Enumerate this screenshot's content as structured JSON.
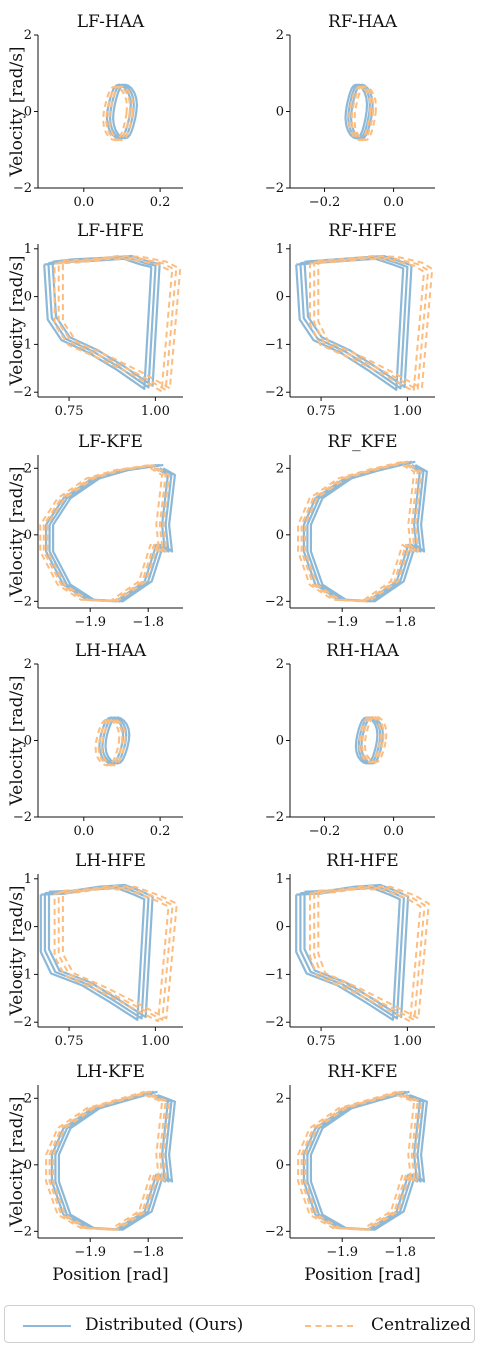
{
  "colors": {
    "distributed": "#8db9d8",
    "centralized": "#fcbd80",
    "axis": "#111111"
  },
  "shared": {
    "ylabel": "Velocity [rad/s]",
    "xlabel": "Position [rad]"
  },
  "legend": {
    "position": "bottom-center",
    "items": [
      {
        "label": "Distributed (Ours)",
        "style": "solid",
        "color": "#8db9d8"
      },
      {
        "label": "Centralized",
        "style": "dashed",
        "color": "#fcbd80"
      }
    ]
  },
  "chart_data": [
    {
      "type": "line",
      "title": "LF-HAA",
      "xlim": [
        -0.12,
        0.26
      ],
      "ylim": [
        -2,
        2
      ],
      "xticks": [
        0.0,
        0.2
      ],
      "xtick_labels": [
        "0.0",
        "0.2"
      ],
      "yticks": [
        -2,
        0,
        2
      ],
      "ytick_labels": [
        "−2",
        "0",
        "2"
      ],
      "shape": "loop",
      "loop": {
        "cx": 0.1,
        "cy": 0.0,
        "rx": 0.03,
        "ry": 0.7
      },
      "series": [
        {
          "name": "Distributed (Ours)",
          "dx": 0.0,
          "dy": 0.0
        },
        {
          "name": "Centralized",
          "dx": -0.01,
          "dy": -0.05
        }
      ]
    },
    {
      "type": "line",
      "title": "RF-HAA",
      "xlim": [
        -0.3,
        0.12
      ],
      "ylim": [
        -2,
        2
      ],
      "xticks": [
        -0.2,
        0.0
      ],
      "xtick_labels": [
        "−0.2",
        "0.0"
      ],
      "yticks": [
        -2,
        0,
        2
      ],
      "ytick_labels": [
        "−2",
        "0",
        "2"
      ],
      "shape": "loop",
      "loop": {
        "cx": -0.1,
        "cy": 0.0,
        "rx": 0.03,
        "ry": 0.7
      },
      "series": [
        {
          "name": "Distributed (Ours)",
          "dx": 0.0,
          "dy": 0.0
        },
        {
          "name": "Centralized",
          "dx": 0.01,
          "dy": -0.05
        }
      ]
    },
    {
      "type": "line",
      "title": "LF-HFE",
      "xlim": [
        0.66,
        1.08
      ],
      "ylim": [
        -2.1,
        1.1
      ],
      "xticks": [
        0.75,
        1.0
      ],
      "xtick_labels": [
        "0.75",
        "1.00"
      ],
      "yticks": [
        -2,
        -1,
        0,
        1
      ],
      "ytick_labels": [
        "−2",
        "−1",
        "0",
        "1"
      ],
      "shape": "quad",
      "series": [
        {
          "name": "Distributed (Ours)",
          "points": [
            [
              0.69,
              0.7
            ],
            [
              0.75,
              0.75
            ],
            [
              0.84,
              0.78
            ],
            [
              0.92,
              0.82
            ],
            [
              0.97,
              0.7
            ],
            [
              1.0,
              0.65
            ],
            [
              1.0,
              0.6
            ],
            [
              0.98,
              -1.9
            ],
            [
              0.9,
              -1.5
            ],
            [
              0.82,
              -1.15
            ],
            [
              0.74,
              -0.88
            ],
            [
              0.7,
              -0.45
            ],
            [
              0.69,
              0.7
            ]
          ]
        },
        {
          "name": "Centralized",
          "points": [
            [
              0.72,
              0.72
            ],
            [
              0.8,
              0.75
            ],
            [
              0.88,
              0.82
            ],
            [
              0.95,
              0.8
            ],
            [
              1.02,
              0.7
            ],
            [
              1.06,
              0.55
            ],
            [
              1.03,
              -1.95
            ],
            [
              0.95,
              -1.62
            ],
            [
              0.86,
              -1.3
            ],
            [
              0.76,
              -0.98
            ],
            [
              0.72,
              -0.55
            ],
            [
              0.72,
              0.72
            ]
          ]
        }
      ]
    },
    {
      "type": "line",
      "title": "RF-HFE",
      "xlim": [
        0.66,
        1.08
      ],
      "ylim": [
        -2.1,
        1.1
      ],
      "xticks": [
        0.75,
        1.0
      ],
      "xtick_labels": [
        "0.75",
        "1.00"
      ],
      "yticks": [
        -2,
        -1,
        0,
        1
      ],
      "ytick_labels": [
        "−2",
        "−1",
        "0",
        "1"
      ],
      "shape": "quad",
      "series": [
        {
          "name": "Distributed (Ours)",
          "points": [
            [
              0.69,
              0.7
            ],
            [
              0.76,
              0.74
            ],
            [
              0.84,
              0.78
            ],
            [
              0.92,
              0.82
            ],
            [
              0.97,
              0.7
            ],
            [
              1.0,
              0.62
            ],
            [
              0.98,
              -1.92
            ],
            [
              0.9,
              -1.52
            ],
            [
              0.82,
              -1.15
            ],
            [
              0.74,
              -0.88
            ],
            [
              0.7,
              -0.45
            ],
            [
              0.69,
              0.7
            ]
          ]
        },
        {
          "name": "Centralized",
          "points": [
            [
              0.73,
              0.72
            ],
            [
              0.81,
              0.76
            ],
            [
              0.89,
              0.82
            ],
            [
              0.96,
              0.8
            ],
            [
              1.03,
              0.68
            ],
            [
              1.06,
              0.55
            ],
            [
              1.03,
              -1.95
            ],
            [
              0.95,
              -1.63
            ],
            [
              0.86,
              -1.3
            ],
            [
              0.76,
              -0.98
            ],
            [
              0.73,
              -0.55
            ],
            [
              0.73,
              0.72
            ]
          ]
        }
      ]
    },
    {
      "type": "line",
      "title": "LF-KFE",
      "xlim": [
        -1.99,
        -1.74
      ],
      "ylim": [
        -2.2,
        2.4
      ],
      "xticks": [
        -1.9,
        -1.8
      ],
      "xtick_labels": [
        "−1.9",
        "−1.8"
      ],
      "yticks": [
        -2,
        0,
        2
      ],
      "ytick_labels": [
        "−2",
        "0",
        "2"
      ],
      "shape": "knee",
      "knee": {
        "left": -1.97,
        "right": -1.77,
        "top": 2.1,
        "bottom": -2.0,
        "stem": -1.78
      },
      "series": [
        {
          "name": "Distributed (Ours)",
          "dx": 0.0
        },
        {
          "name": "Centralized",
          "dx": -0.01
        }
      ]
    },
    {
      "type": "line",
      "title": "RF_KFE",
      "xlim": [
        -1.99,
        -1.74
      ],
      "ylim": [
        -2.2,
        2.4
      ],
      "xticks": [
        -1.9,
        -1.8
      ],
      "xtick_labels": [
        "−1.9",
        "−1.8"
      ],
      "yticks": [
        -2,
        0,
        2
      ],
      "ytick_labels": [
        "−2",
        "0",
        "2"
      ],
      "shape": "knee",
      "knee": {
        "left": -1.96,
        "right": -1.77,
        "top": 2.2,
        "bottom": -2.0,
        "stem": -1.78
      },
      "series": [
        {
          "name": "Distributed (Ours)",
          "dx": 0.0
        },
        {
          "name": "Centralized",
          "dx": -0.01
        }
      ]
    },
    {
      "type": "line",
      "title": "LH-HAA",
      "xlim": [
        -0.12,
        0.26
      ],
      "ylim": [
        -2,
        2
      ],
      "xticks": [
        0.0,
        0.2
      ],
      "xtick_labels": [
        "0.0",
        "0.2"
      ],
      "yticks": [
        -2,
        0,
        2
      ],
      "ytick_labels": [
        "−2",
        "0",
        "2"
      ],
      "shape": "loop",
      "loop": {
        "cx": 0.08,
        "cy": 0.0,
        "rx": 0.03,
        "ry": 0.6
      },
      "series": [
        {
          "name": "Distributed (Ours)",
          "dx": 0.0,
          "dy": 0.0
        },
        {
          "name": "Centralized",
          "dx": -0.01,
          "dy": -0.05
        }
      ]
    },
    {
      "type": "line",
      "title": "RH-HAA",
      "xlim": [
        -0.3,
        0.12
      ],
      "ylim": [
        -2,
        2
      ],
      "xticks": [
        -0.2,
        0.0
      ],
      "xtick_labels": [
        "−0.2",
        "0.0"
      ],
      "yticks": [
        -2,
        0,
        2
      ],
      "ytick_labels": [
        "−2",
        "0",
        "2"
      ],
      "shape": "loop",
      "loop": {
        "cx": -0.07,
        "cy": 0.0,
        "rx": 0.03,
        "ry": 0.6
      },
      "series": [
        {
          "name": "Distributed (Ours)",
          "dx": 0.0,
          "dy": 0.0
        },
        {
          "name": "Centralized",
          "dx": 0.01,
          "dy": 0.03
        }
      ]
    },
    {
      "type": "line",
      "title": "LH-HFE",
      "xlim": [
        0.66,
        1.08
      ],
      "ylim": [
        -2.1,
        1.1
      ],
      "xticks": [
        0.75,
        1.0
      ],
      "xtick_labels": [
        "0.75",
        "1.00"
      ],
      "yticks": [
        -2,
        -1,
        0,
        1
      ],
      "ytick_labels": [
        "−2",
        "−1",
        "0",
        "1"
      ],
      "shape": "quad",
      "series": [
        {
          "name": "Distributed (Ours)",
          "points": [
            [
              0.68,
              0.7
            ],
            [
              0.75,
              0.72
            ],
            [
              0.82,
              0.8
            ],
            [
              0.9,
              0.84
            ],
            [
              0.95,
              0.7
            ],
            [
              0.98,
              0.6
            ],
            [
              0.96,
              -1.92
            ],
            [
              0.88,
              -1.55
            ],
            [
              0.8,
              -1.2
            ],
            [
              0.71,
              -0.95
            ],
            [
              0.68,
              -0.5
            ],
            [
              0.68,
              0.7
            ]
          ]
        },
        {
          "name": "Centralized",
          "points": [
            [
              0.72,
              0.72
            ],
            [
              0.79,
              0.75
            ],
            [
              0.86,
              0.82
            ],
            [
              0.93,
              0.8
            ],
            [
              1.0,
              0.62
            ],
            [
              1.05,
              0.45
            ],
            [
              1.02,
              -1.95
            ],
            [
              0.94,
              -1.65
            ],
            [
              0.85,
              -1.32
            ],
            [
              0.75,
              -1.0
            ],
            [
              0.72,
              -0.6
            ],
            [
              0.72,
              0.72
            ]
          ]
        }
      ]
    },
    {
      "type": "line",
      "title": "RH-HFE",
      "xlim": [
        0.66,
        1.08
      ],
      "ylim": [
        -2.1,
        1.1
      ],
      "xticks": [
        0.75,
        1.0
      ],
      "xtick_labels": [
        "0.75",
        "1.00"
      ],
      "yticks": [
        -2,
        -1,
        0,
        1
      ],
      "ytick_labels": [
        "−2",
        "−1",
        "0",
        "1"
      ],
      "shape": "quad",
      "series": [
        {
          "name": "Distributed (Ours)",
          "points": [
            [
              0.69,
              0.7
            ],
            [
              0.76,
              0.72
            ],
            [
              0.83,
              0.8
            ],
            [
              0.91,
              0.84
            ],
            [
              0.96,
              0.7
            ],
            [
              0.99,
              0.6
            ],
            [
              0.97,
              -1.92
            ],
            [
              0.89,
              -1.55
            ],
            [
              0.81,
              -1.2
            ],
            [
              0.72,
              -0.95
            ],
            [
              0.69,
              -0.5
            ],
            [
              0.69,
              0.7
            ]
          ]
        },
        {
          "name": "Centralized",
          "points": [
            [
              0.73,
              0.72
            ],
            [
              0.8,
              0.75
            ],
            [
              0.87,
              0.82
            ],
            [
              0.94,
              0.8
            ],
            [
              1.01,
              0.62
            ],
            [
              1.05,
              0.45
            ],
            [
              1.02,
              -1.95
            ],
            [
              0.94,
              -1.65
            ],
            [
              0.85,
              -1.32
            ],
            [
              0.75,
              -1.0
            ],
            [
              0.73,
              -0.6
            ],
            [
              0.73,
              0.72
            ]
          ]
        }
      ]
    },
    {
      "type": "line",
      "title": "LH-KFE",
      "xlim": [
        -1.99,
        -1.74
      ],
      "ylim": [
        -2.2,
        2.4
      ],
      "xticks": [
        -1.9,
        -1.8
      ],
      "xtick_labels": [
        "−1.9",
        "−1.8"
      ],
      "yticks": [
        -2,
        0,
        2
      ],
      "ytick_labels": [
        "−2",
        "0",
        "2"
      ],
      "shape": "knee",
      "knee": {
        "left": -1.96,
        "right": -1.77,
        "top": 2.2,
        "bottom": -1.95,
        "stem": -1.79
      },
      "series": [
        {
          "name": "Distributed (Ours)",
          "dx": 0.0
        },
        {
          "name": "Centralized",
          "dx": -0.01
        }
      ]
    },
    {
      "type": "line",
      "title": "RH-KFE",
      "xlim": [
        -1.99,
        -1.74
      ],
      "ylim": [
        -2.2,
        2.4
      ],
      "xticks": [
        -1.9,
        -1.8
      ],
      "xtick_labels": [
        "−1.9",
        "−1.8"
      ],
      "yticks": [
        -2,
        0,
        2
      ],
      "ytick_labels": [
        "−2",
        "0",
        "2"
      ],
      "shape": "knee",
      "knee": {
        "left": -1.96,
        "right": -1.77,
        "top": 2.2,
        "bottom": -1.95,
        "stem": -1.79
      },
      "series": [
        {
          "name": "Distributed (Ours)",
          "dx": 0.0
        },
        {
          "name": "Centralized",
          "dx": -0.01
        }
      ]
    }
  ]
}
